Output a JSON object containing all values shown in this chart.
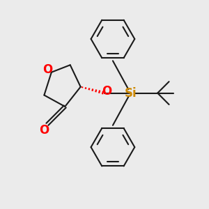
{
  "bg_color": "#ebebeb",
  "bond_color": "#1a1a1a",
  "oxygen_color": "#ff0000",
  "silicon_color": "#cc8800",
  "line_width": 1.5,
  "font_size_atom": 10,
  "font_size_si": 10,
  "xlim": [
    0,
    10
  ],
  "ylim": [
    0,
    10
  ]
}
